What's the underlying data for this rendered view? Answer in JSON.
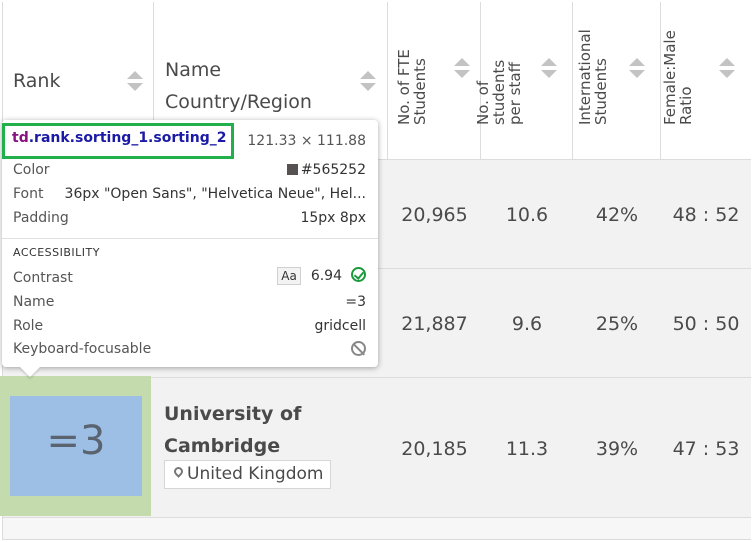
{
  "header": {
    "rank": "Rank",
    "name_line1": "Name",
    "name_line2": "Country/Region",
    "fte_line1": "No. of FTE",
    "fte_line2": "Students",
    "ratio_line1": "No. of",
    "ratio_line2": "students",
    "ratio_line3": "per staff",
    "intl_line1": "International",
    "intl_line2": "Students",
    "gender_line1": "Female:Male",
    "gender_line2": "Ratio"
  },
  "rows": [
    {
      "fte": "20,965",
      "ratio": "10.6",
      "intl": "42%",
      "gender": "48 : 52"
    },
    {
      "fte": "21,887",
      "ratio": "9.6",
      "intl": "25%",
      "gender": "50 : 50"
    },
    {
      "rank": "=3",
      "name_line1": "University of",
      "name_line2": "Cambridge",
      "country": "United Kingdom",
      "fte": "20,185",
      "ratio": "11.3",
      "intl": "39%",
      "gender": "47 : 53"
    }
  ],
  "inspector": {
    "selector_tag": "td",
    "selector_classes": ".rank.sorting_1.sorting_2",
    "size": "121.33 × 111.88",
    "color_label": "Color",
    "color_value": "#565252",
    "font_label": "Font",
    "font_value": "36px \"Open Sans\", \"Helvetica Neue\", Hel...",
    "padding_label": "Padding",
    "padding_value": "15px 8px",
    "accessibility_heading": "ACCESSIBILITY",
    "contrast_label": "Contrast",
    "contrast_badge": "Aa",
    "contrast_value": "6.94",
    "name_label": "Name",
    "name_value": "=3",
    "role_label": "Role",
    "role_value": "gridcell",
    "focusable_label": "Keyboard-focusable"
  },
  "colors": {
    "highlight_padding": "#c3dbad",
    "highlight_content": "#9dbfe5",
    "selector_border": "#22b04c",
    "row_bg": "#f2f2f2"
  },
  "icons": {
    "sort": "sort-arrows-icon",
    "location": "map-pin-icon",
    "contrast_pass": "check-circle-icon",
    "not_focusable": "no-entry-icon"
  }
}
